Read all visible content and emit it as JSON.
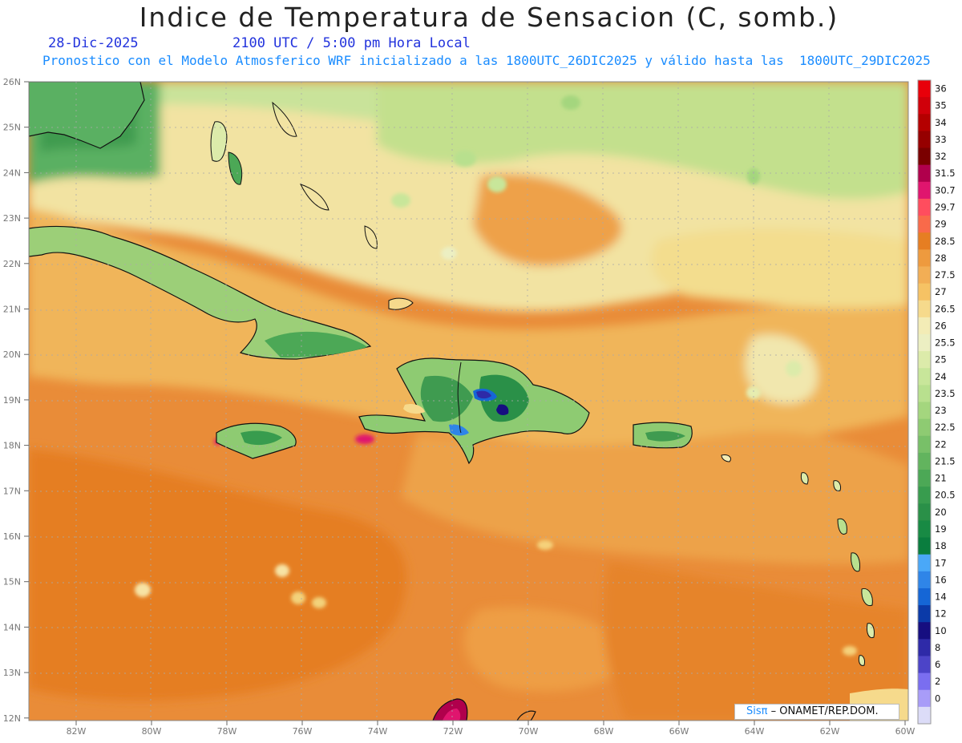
{
  "header": {
    "title": "Indice de Temperatura de Sensacion (C, somb.)",
    "date": "28-Dic-2025",
    "time": "2100 UTC / 5:00 pm Hora Local",
    "description": "Pronostico con el Modelo Atmosferico WRF inicializado a las 1800UTC_26DIC2025 y válido hasta las  1800UTC_29DIC2025"
  },
  "map": {
    "lat_labels": [
      "26N",
      "25N",
      "24N",
      "23N",
      "22N",
      "21N",
      "20N",
      "19N",
      "18N",
      "17N",
      "16N",
      "15N",
      "14N",
      "13N",
      "12N"
    ],
    "lon_labels": [
      "82W",
      "80W",
      "78W",
      "76W",
      "74W",
      "72W",
      "70W",
      "68W",
      "66W",
      "64W",
      "62W",
      "60W"
    ],
    "lon_range": [
      -83.2,
      -60
    ],
    "lat_range": [
      11.9,
      26.1
    ]
  },
  "legend": {
    "labels": [
      "36",
      "35",
      "34",
      "33",
      "32",
      "31.5",
      "30.7",
      "29.7",
      "29",
      "28.5",
      "28",
      "27.5",
      "27",
      "26.5",
      "26",
      "25.5",
      "25",
      "24",
      "23.5",
      "23",
      "22.5",
      "22",
      "21.5",
      "21",
      "20.5",
      "20",
      "19",
      "18",
      "17",
      "16",
      "14",
      "12",
      "10",
      "8",
      "6",
      "2",
      "0"
    ],
    "colors": [
      "#e8000a",
      "#d0000a",
      "#b40000",
      "#960000",
      "#7a0000",
      "#b0004c",
      "#e0156e",
      "#ff4d5e",
      "#f96a4a",
      "#e67e22",
      "#ee9a3e",
      "#f2ae55",
      "#f6c264",
      "#f6da8c",
      "#f3ecb6",
      "#ecefc2",
      "#dcebaa",
      "#c8e69a",
      "#b8e08e",
      "#a4d67e",
      "#8ecb72",
      "#78c068",
      "#62b45e",
      "#4ca856",
      "#389c4e",
      "#2a9048",
      "#188a44",
      "#0a7d3e",
      "#4aa8f8",
      "#2f85e8",
      "#1566d6",
      "#0b3aa8",
      "#160e80",
      "#2e2aa8",
      "#4c44c8",
      "#7a6ef0",
      "#a89cf8",
      "#dcdcf8"
    ]
  },
  "credit": {
    "logo": "Sisπ",
    "text": "– ONAMET/REP.DOM."
  }
}
